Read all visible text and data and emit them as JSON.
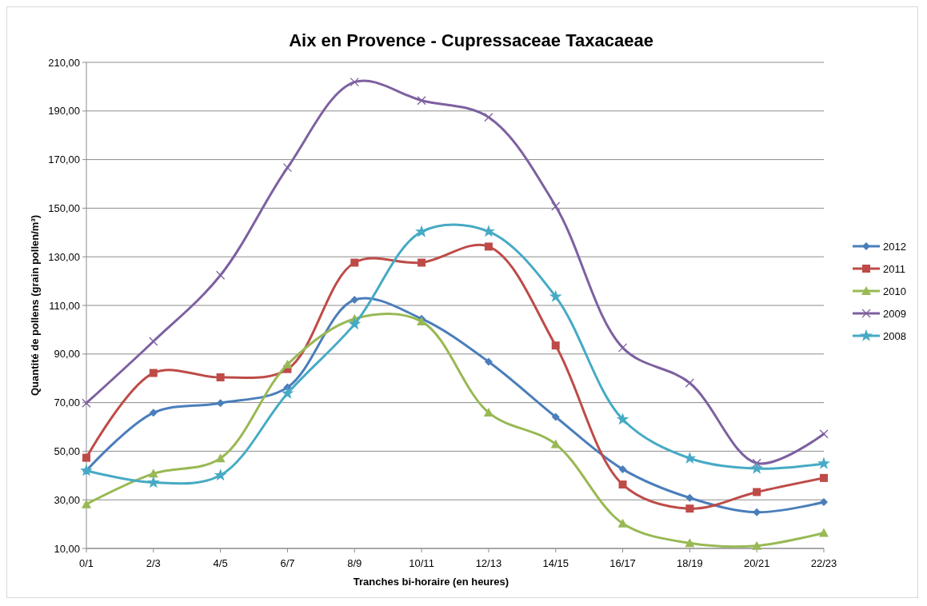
{
  "chart_data": {
    "type": "line",
    "title": "Aix en Provence - Cupressaceae Taxacaeae",
    "xlabel": "Tranches bi-horaire (en heures)",
    "ylabel": "Quantité de pollens (grain pollen/m³)",
    "categories": [
      "0/1",
      "2/3",
      "4/5",
      "6/7",
      "8/9",
      "10/11",
      "12/13",
      "14/15",
      "16/17",
      "18/19",
      "20/21",
      "22/23"
    ],
    "ylim": [
      10,
      210
    ],
    "yticks": [
      {
        "value": 10,
        "label": "10,00"
      },
      {
        "value": 30,
        "label": "30,00"
      },
      {
        "value": 50,
        "label": "50,00"
      },
      {
        "value": 70,
        "label": "70,00"
      },
      {
        "value": 90,
        "label": "90,00"
      },
      {
        "value": 110,
        "label": "110,00"
      },
      {
        "value": 130,
        "label": "130,00"
      },
      {
        "value": 150,
        "label": "150,00"
      },
      {
        "value": 170,
        "label": "170,00"
      },
      {
        "value": 190,
        "label": "190,00"
      },
      {
        "value": 210,
        "label": "210,00"
      }
    ],
    "grid": "y",
    "legend": "right",
    "series": [
      {
        "name": "2012",
        "color": "#4a7ebb",
        "marker": "diamond",
        "values": [
          42,
          65.8,
          69.8,
          76.3,
          112.3,
          104.5,
          86.8,
          64.1,
          42.6,
          30.8,
          24.9,
          29.1
        ]
      },
      {
        "name": "2011",
        "color": "#be4b48",
        "marker": "square",
        "values": [
          47.3,
          82.2,
          80.4,
          83.8,
          127.6,
          127.6,
          134.2,
          93.5,
          36.3,
          26.4,
          33.2,
          39
        ]
      },
      {
        "name": "2010",
        "color": "#98b954",
        "marker": "triangle",
        "values": [
          28.2,
          40.8,
          47.1,
          85.7,
          104.5,
          103.4,
          65.9,
          52.9,
          20.3,
          12.2,
          11.1,
          16.4
        ]
      },
      {
        "name": "2009",
        "color": "#7d60a0",
        "marker": "cross",
        "values": [
          69.8,
          95.2,
          122.4,
          166.7,
          201.9,
          194.3,
          187.4,
          150.8,
          92.6,
          78.1,
          45.1,
          57.1
        ]
      },
      {
        "name": "2008",
        "color": "#46aac5",
        "marker": "star",
        "values": [
          42,
          37.1,
          40.1,
          73.8,
          102.3,
          140.3,
          140.4,
          113.6,
          63.1,
          47.1,
          42.9,
          44.9
        ]
      }
    ]
  }
}
